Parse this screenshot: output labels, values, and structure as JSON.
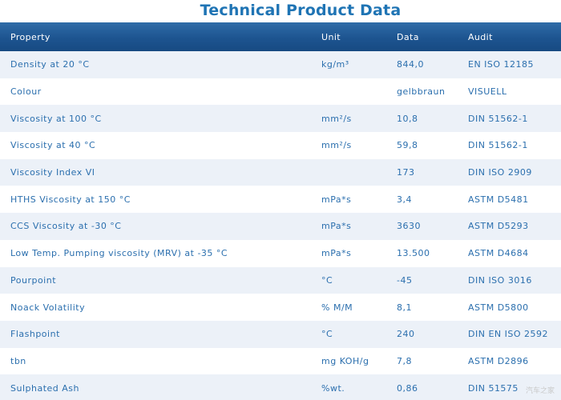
{
  "title": "Technical Product Data",
  "header": {
    "property": "Property",
    "unit": "Unit",
    "data": "Data",
    "audit": "Audit"
  },
  "rows": [
    {
      "property": "Density at 20 °C",
      "unit": "kg/m³",
      "data": "844,0",
      "audit": "EN ISO 12185"
    },
    {
      "property": "Colour",
      "unit": "",
      "data": "gelbbraun",
      "audit": "VISUELL"
    },
    {
      "property": "Viscosity at 100 °C",
      "unit": "mm²/s",
      "data": "10,8",
      "audit": "DIN 51562-1"
    },
    {
      "property": "Viscosity at 40 °C",
      "unit": "mm²/s",
      "data": "59,8",
      "audit": "DIN 51562-1"
    },
    {
      "property": "Viscosity Index VI",
      "unit": "",
      "data": "173",
      "audit": "DIN ISO 2909"
    },
    {
      "property": "HTHS Viscosity at 150 °C",
      "unit": "mPa*s",
      "data": "3,4",
      "audit": "ASTM D5481"
    },
    {
      "property": "CCS Viscosity at -30 °C",
      "unit": "mPa*s",
      "data": "3630",
      "audit": "ASTM D5293"
    },
    {
      "property": "Low Temp. Pumping viscosity (MRV) at -35 °C",
      "unit": "mPa*s",
      "data": "13.500",
      "audit": "ASTM D4684"
    },
    {
      "property": "Pourpoint",
      "unit": "°C",
      "data": "-45",
      "audit": "DIN ISO 3016"
    },
    {
      "property": "Noack Volatility",
      "unit": "% M/M",
      "data": "8,1",
      "audit": "ASTM D5800"
    },
    {
      "property": "Flashpoint",
      "unit": "°C",
      "data": "240",
      "audit": "DIN EN ISO 2592"
    },
    {
      "property": "tbn",
      "unit": "mg KOH/g",
      "data": "7,8",
      "audit": "ASTM D2896"
    },
    {
      "property": "Sulphated Ash",
      "unit": "%wt.",
      "data": "0,86",
      "audit": "DIN 51575"
    }
  ],
  "watermark": "汽车之家"
}
